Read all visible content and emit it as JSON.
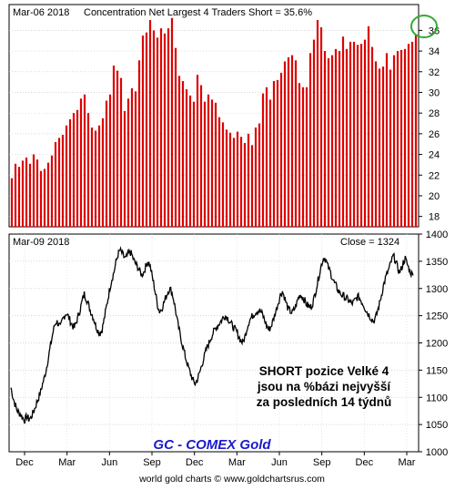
{
  "charts": {
    "top": {
      "title_date": "Mar-06  2018",
      "title": "Concentration Net Largest 4 Traders Short = 35.6%",
      "highlight_value": "36"
    },
    "bottom": {
      "title_date": "Mar-09  2018",
      "close_label": "Close = 1324"
    }
  },
  "annotation": {
    "line1": "SHORT pozice Velké 4",
    "line2": "jsou na %bázi nejvyšší",
    "line3": "za posledních 14 týdnů"
  },
  "brand": "GC - COMEX Gold",
  "footer": "world gold charts © www.goldchartsrus.com",
  "colors": {
    "bar": "#dd0000",
    "line": "#000000",
    "highlight_circle": "#33aa33",
    "brand_text": "#1a1acc"
  },
  "chart_data": [
    {
      "type": "bar",
      "title": "Concentration Net Largest 4 Traders Short = 35.6%",
      "ylim": [
        17,
        38.5
      ],
      "yticks": [
        18,
        20,
        22,
        24,
        26,
        28,
        30,
        32,
        34,
        36
      ],
      "values": [
        21.7,
        23.1,
        22.8,
        23.4,
        23.7,
        23.1,
        24.0,
        23.5,
        22.4,
        22.6,
        23.2,
        23.9,
        25.2,
        25.6,
        25.9,
        26.8,
        27.4,
        28.0,
        28.3,
        29.4,
        29.8,
        28.0,
        26.6,
        26.3,
        26.8,
        27.5,
        29.2,
        29.8,
        32.6,
        32.1,
        31.4,
        28.2,
        29.4,
        30.4,
        30.1,
        33.1,
        35.5,
        35.8,
        37.0,
        36.0,
        35.3,
        36.2,
        35.7,
        36.2,
        37.2,
        34.3,
        31.6,
        31.1,
        30.3,
        29.7,
        29.1,
        31.7,
        30.7,
        29.1,
        29.8,
        29.3,
        29.0,
        27.6,
        27.1,
        26.4,
        26.1,
        25.6,
        26.2,
        25.7,
        25.1,
        26.0,
        24.9,
        26.6,
        27.0,
        29.9,
        30.5,
        29.3,
        31.1,
        31.2,
        31.9,
        33.0,
        33.4,
        33.6,
        33.1,
        30.9,
        30.5,
        30.5,
        33.8,
        35.1,
        37.0,
        36.3,
        34.0,
        33.3,
        33.6,
        34.2,
        34.0,
        35.4,
        34.2,
        34.9,
        34.9,
        34.6,
        34.7,
        35.1,
        36.4,
        34.4,
        33.0,
        32.3,
        32.5,
        33.8,
        32.2,
        33.6,
        34.0,
        34.1,
        34.2,
        34.7,
        34.9,
        35.6
      ]
    },
    {
      "type": "line",
      "title": "",
      "ylim": [
        1000,
        1400
      ],
      "yticks": [
        1000,
        1050,
        1100,
        1150,
        1200,
        1250,
        1300,
        1350,
        1400
      ],
      "xlabels": [
        "Dec",
        "Mar",
        "Jun",
        "Sep",
        "Dec",
        "Mar",
        "Jun",
        "Sep",
        "Dec",
        "Mar"
      ],
      "close": 1324,
      "values": [
        1118,
        1101,
        1088,
        1077,
        1072,
        1068,
        1062,
        1058,
        1065,
        1060,
        1062,
        1070,
        1079,
        1090,
        1100,
        1110,
        1125,
        1138,
        1155,
        1175,
        1195,
        1215,
        1232,
        1240,
        1235,
        1228,
        1242,
        1250,
        1255,
        1248,
        1240,
        1232,
        1228,
        1238,
        1250,
        1262,
        1278,
        1290,
        1282,
        1272,
        1260,
        1252,
        1242,
        1230,
        1222,
        1218,
        1225,
        1242,
        1262,
        1282,
        1302,
        1318,
        1330,
        1348,
        1362,
        1370,
        1365,
        1358,
        1355,
        1362,
        1368,
        1362,
        1352,
        1345,
        1340,
        1332,
        1325,
        1330,
        1340,
        1350,
        1345,
        1328,
        1310,
        1290,
        1270,
        1258,
        1262,
        1272,
        1282,
        1292,
        1300,
        1296,
        1282,
        1262,
        1240,
        1222,
        1205,
        1190,
        1175,
        1162,
        1150,
        1140,
        1130,
        1125,
        1132,
        1142,
        1155,
        1168,
        1180,
        1192,
        1200,
        1210,
        1218,
        1225,
        1230,
        1235,
        1240,
        1246,
        1250,
        1248,
        1242,
        1236,
        1230,
        1225,
        1220,
        1212,
        1205,
        1200,
        1210,
        1225,
        1238,
        1245,
        1250,
        1255,
        1258,
        1260,
        1258,
        1252,
        1242,
        1232,
        1225,
        1228,
        1238,
        1250,
        1262,
        1275,
        1288,
        1295,
        1285,
        1272,
        1262,
        1258,
        1255,
        1262,
        1270,
        1282,
        1288,
        1286,
        1280,
        1272,
        1268,
        1265,
        1270,
        1282,
        1298,
        1315,
        1332,
        1348,
        1358,
        1352,
        1340,
        1332,
        1322,
        1312,
        1305,
        1298,
        1292,
        1288,
        1286,
        1282,
        1280,
        1276,
        1272,
        1275,
        1280,
        1285,
        1282,
        1276,
        1270,
        1262,
        1255,
        1250,
        1245,
        1240,
        1245,
        1258,
        1272,
        1288,
        1305,
        1318,
        1328,
        1338,
        1350,
        1360,
        1352,
        1340,
        1330,
        1335,
        1348,
        1355,
        1345,
        1335,
        1328,
        1324
      ]
    }
  ]
}
